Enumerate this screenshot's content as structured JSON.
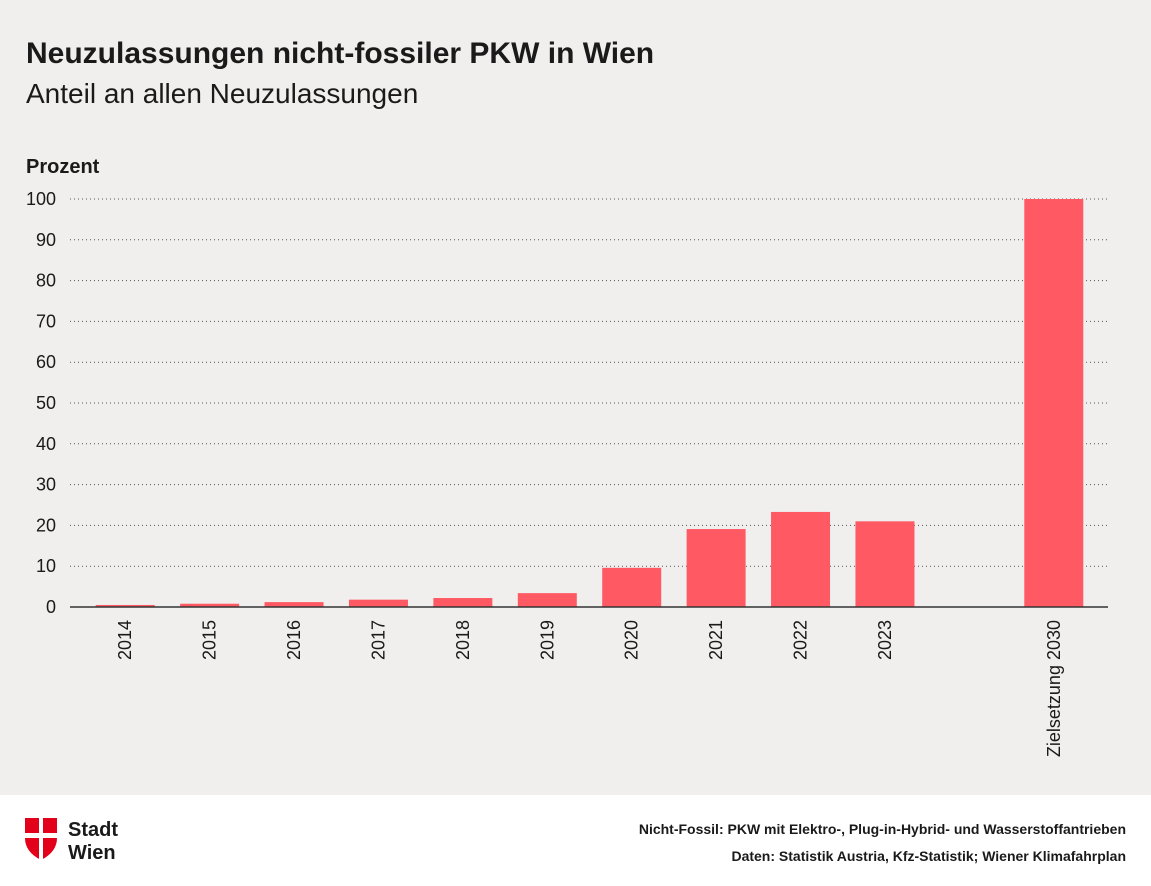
{
  "chart_data": {
    "type": "bar",
    "title": "Neuzulassungen nicht-fossiler PKW in Wien",
    "subtitle": "Anteil an allen Neuzulassungen",
    "y_label": "Prozent",
    "categories": [
      "2014",
      "2015",
      "2016",
      "2017",
      "2018",
      "2019",
      "2020",
      "2021",
      "2022",
      "2023",
      null,
      "Zielsetzung 2030"
    ],
    "values": [
      0.5,
      0.8,
      1.2,
      1.8,
      2.2,
      3.4,
      9.6,
      19.1,
      23.3,
      21.0,
      null,
      100
    ],
    "color": "#ff5a64",
    "ylim": [
      0,
      100
    ],
    "yticks": [
      0,
      10,
      20,
      30,
      40,
      50,
      60,
      70,
      80,
      90,
      100
    ],
    "grid": true
  },
  "footer": {
    "logo": [
      "Stadt",
      "Wien"
    ],
    "notes": [
      "Nicht-Fossil: PKW mit Elektro-, Plug-in-Hybrid- und Wasserstoffantrieben",
      "Daten: Statistik Austria, Kfz-Statistik; Wiener Klimafahrplan"
    ]
  }
}
